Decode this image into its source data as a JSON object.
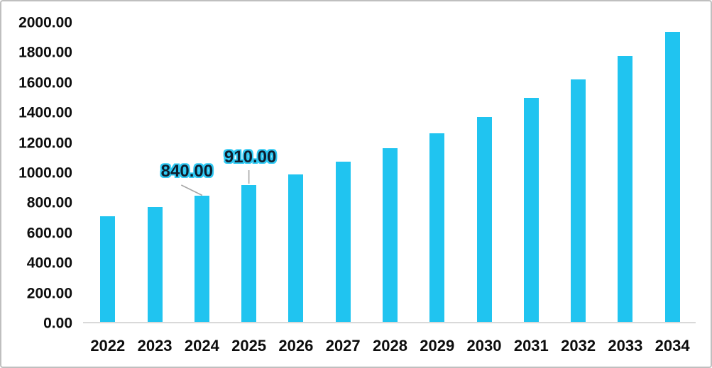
{
  "chart_data": {
    "type": "bar",
    "title": "",
    "xlabel": "",
    "ylabel": "",
    "categories": [
      "2022",
      "2023",
      "2024",
      "2025",
      "2026",
      "2027",
      "2028",
      "2029",
      "2030",
      "2031",
      "2032",
      "2033",
      "2034"
    ],
    "values": [
      705,
      765,
      840,
      910,
      980,
      1065,
      1155,
      1255,
      1365,
      1490,
      1615,
      1770,
      1930
    ],
    "ylim": [
      0,
      2000
    ],
    "ytick_step": 200,
    "ytick_labels": [
      "0.00",
      "200.00",
      "400.00",
      "600.00",
      "800.00",
      "1000.00",
      "1200.00",
      "1400.00",
      "1600.00",
      "1800.00",
      "2000.00"
    ],
    "grid": false,
    "legend": null,
    "annotations": [
      {
        "category": "2024",
        "text": "840.00",
        "leader": "diagonal"
      },
      {
        "category": "2025",
        "text": "910.00",
        "leader": "vertical"
      }
    ],
    "colors": {
      "bar": "#20C4F0",
      "axis_line": "#D9D9D9",
      "leader_line": "#A6A6A6",
      "tick_text": "#0d0d0d",
      "data_label_fill": "#0f1e2e",
      "data_label_outline": "#2FC9F3"
    }
  }
}
